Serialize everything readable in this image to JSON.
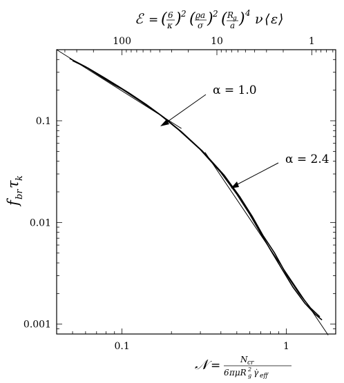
{
  "chart_data": {
    "type": "line",
    "x_scale": "log",
    "y_scale": "log",
    "xlim": [
      0.04,
      2.0
    ],
    "ylim": [
      0.0008,
      0.5
    ],
    "grid": false,
    "xlabel": "𝒩 = N_cr / (6πμR_g²γ̇_eff)",
    "ylabel": "f_br τ_k",
    "top_axis_label": "ℰ = (6/κ)² (ϱa/σ)² (R_g/a)⁴ ν ⟨ε⟩",
    "x_ticks": [
      {
        "value": 0.1,
        "label": "0.1"
      },
      {
        "value": 1,
        "label": "1"
      }
    ],
    "y_ticks": [
      {
        "value": 0.001,
        "label": "0.001"
      },
      {
        "value": 0.01,
        "label": "0.01"
      },
      {
        "value": 0.1,
        "label": "0.1"
      }
    ],
    "top_ticks": [
      {
        "value": 100,
        "label": "100"
      },
      {
        "value": 10,
        "label": "10"
      },
      {
        "value": 1,
        "label": "1"
      }
    ],
    "top_axis_map": {
      "E_at_x_0_1": 100,
      "E_at_x_0_38": 10,
      "E_at_x_1_43": 1
    },
    "series": [
      {
        "points": [
          [
            0.048,
            0.41
          ],
          [
            0.06,
            0.34
          ],
          [
            0.075,
            0.27
          ],
          [
            0.09,
            0.225
          ],
          [
            0.1,
            0.205
          ],
          [
            0.13,
            0.155
          ],
          [
            0.17,
            0.115
          ],
          [
            0.22,
            0.082
          ],
          [
            0.3,
            0.052
          ],
          [
            0.4,
            0.031
          ],
          [
            0.5,
            0.019
          ],
          [
            0.6,
            0.012
          ],
          [
            0.7,
            0.0078
          ],
          [
            0.8,
            0.0054
          ],
          [
            0.95,
            0.0034
          ],
          [
            1.1,
            0.0023
          ],
          [
            1.3,
            0.0016
          ],
          [
            1.5,
            0.00125
          ],
          [
            1.65,
            0.0011
          ]
        ]
      },
      {
        "points": [
          [
            0.05,
            0.39
          ],
          [
            0.062,
            0.33
          ],
          [
            0.078,
            0.265
          ],
          [
            0.095,
            0.218
          ],
          [
            0.11,
            0.188
          ],
          [
            0.14,
            0.145
          ],
          [
            0.18,
            0.108
          ],
          [
            0.23,
            0.078
          ],
          [
            0.31,
            0.05
          ],
          [
            0.42,
            0.029
          ],
          [
            0.52,
            0.018
          ],
          [
            0.62,
            0.0115
          ],
          [
            0.72,
            0.0075
          ],
          [
            0.85,
            0.005
          ],
          [
            1.0,
            0.0031
          ],
          [
            1.2,
            0.002
          ],
          [
            1.4,
            0.00145
          ],
          [
            1.6,
            0.00118
          ]
        ]
      }
    ],
    "reference_lines": [
      {
        "alpha": 1.0,
        "x": [
          0.04,
          0.23
        ],
        "y": [
          0.5,
          0.084
        ]
      },
      {
        "alpha": 2.4,
        "x": [
          0.32,
          1.8
        ],
        "y": [
          0.049,
          0.00078
        ]
      }
    ],
    "annotations": [
      {
        "text": "α = 1.0",
        "position": "upper-middle"
      },
      {
        "text": "α = 2.4",
        "position": "middle-right"
      }
    ]
  }
}
